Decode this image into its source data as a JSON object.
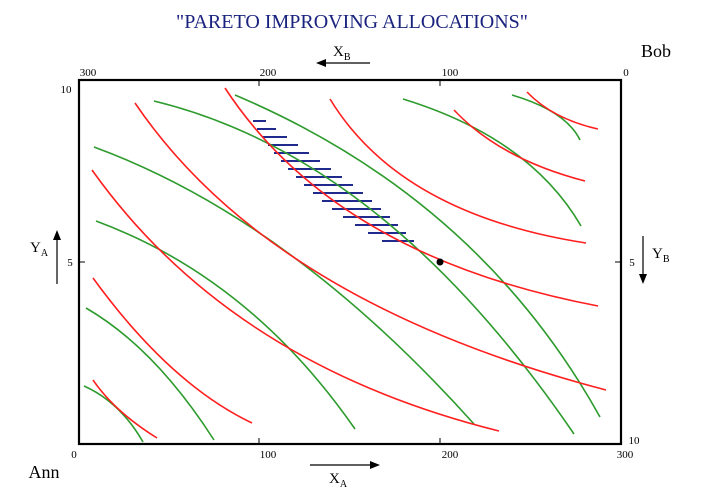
{
  "title": "\"PARETO IMPROVING ALLOCATIONS\"",
  "colors": {
    "title": "#1a237e",
    "red_curves": "#ff1f1f",
    "green_curves": "#2e9b2e",
    "hatch": "#1f2a8c",
    "frame": "#000000"
  },
  "agents": {
    "bottom_left": "Ann",
    "top_right": "Bob"
  },
  "axes": {
    "x_a": {
      "label_main": "X",
      "label_sub": "A",
      "ticks": [
        "0",
        "100",
        "200",
        "300"
      ]
    },
    "x_b": {
      "label_main": "X",
      "label_sub": "B",
      "ticks": [
        "300",
        "200",
        "100",
        "0"
      ]
    },
    "y_a": {
      "label_main": "Y",
      "label_sub": "A",
      "ticks": [
        "10",
        "5"
      ]
    },
    "y_b": {
      "label_main": "Y",
      "label_sub": "B",
      "ticks": [
        "5",
        "10"
      ]
    }
  },
  "initial_allocation": {
    "x_a": 200,
    "y_a": 5
  }
}
